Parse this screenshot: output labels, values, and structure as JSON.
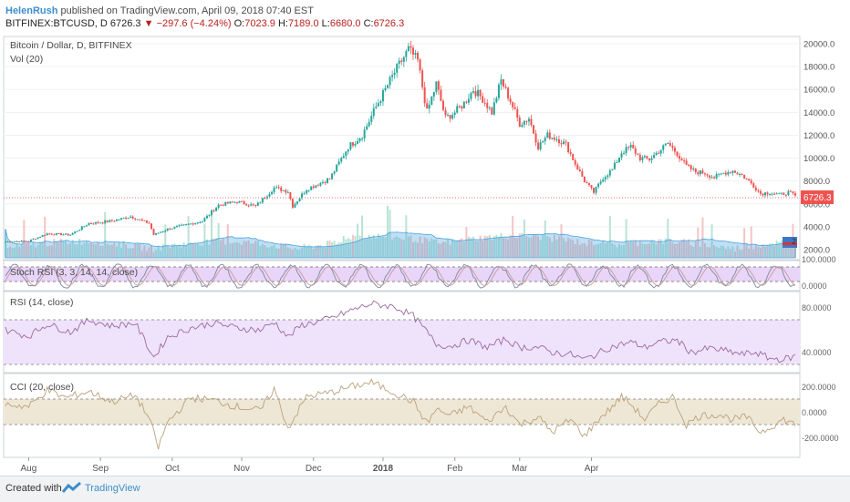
{
  "header": {
    "author": "HelenRush",
    "published": "published on TradingView.com, April 09, 2018 07:40 EST",
    "symbol": "BITFINEX:BTCUSD, D",
    "last": "6726.3",
    "change": "−297.6 (−4.24%)",
    "o_label": "O:",
    "o_value": "7023.9",
    "h_label": "H:",
    "h_value": "7189.0",
    "l_label": "L:",
    "l_value": "6680.0",
    "c_label": "C:",
    "c_value": "6726.3"
  },
  "footer": {
    "created": "Created with",
    "brand": "TradingView"
  },
  "colors": {
    "up": "#53b987",
    "down": "#eb4d5c",
    "candle_up": "#26a69a",
    "candle_down": "#ef5350",
    "vol_ma": "#4aa3df",
    "panel_bg": "#e6d5f5",
    "cci_band": "#efe7d6",
    "oscillator": "#9b6aa0",
    "price_line": "#e57373",
    "brand": "#3c8ecc"
  },
  "chart_data": [
    {
      "type": "candlestick",
      "title": "Bitcoin / Dollar, D, BITFINEX",
      "subtitle": "Vol (20)",
      "x_ticks": [
        "Aug",
        "Sep",
        "Oct",
        "Nov",
        "Dec",
        "2018",
        "Feb",
        "Mar",
        "Apr"
      ],
      "y_ticks": [
        "20000.0",
        "18000.0",
        "16000.0",
        "14000.0",
        "12000.0",
        "10000.0",
        "8000.0",
        "6000.0",
        "4000.0",
        "2000.0"
      ],
      "ylim": [
        2000,
        20000
      ],
      "last_price_label": "6726.3",
      "volume_axis_label": "2",
      "anchors": [
        [
          0,
          2700
        ],
        [
          10,
          2750
        ],
        [
          18,
          3400
        ],
        [
          28,
          3300
        ],
        [
          36,
          4300
        ],
        [
          46,
          4500
        ],
        [
          54,
          4900
        ],
        [
          62,
          4300
        ],
        [
          64,
          3300
        ],
        [
          70,
          3800
        ],
        [
          85,
          4500
        ],
        [
          92,
          5900
        ],
        [
          100,
          6200
        ],
        [
          108,
          5800
        ],
        [
          116,
          7400
        ],
        [
          122,
          7100
        ],
        [
          124,
          5800
        ],
        [
          130,
          7300
        ],
        [
          140,
          8200
        ],
        [
          148,
          11000
        ],
        [
          154,
          12000
        ],
        [
          160,
          14500
        ],
        [
          168,
          17500
        ],
        [
          174,
          19500
        ],
        [
          178,
          18500
        ],
        [
          182,
          14000
        ],
        [
          186,
          16500
        ],
        [
          190,
          13500
        ],
        [
          194,
          14000
        ],
        [
          198,
          14800
        ],
        [
          202,
          16000
        ],
        [
          206,
          15200
        ],
        [
          210,
          14000
        ],
        [
          214,
          16800
        ],
        [
          218,
          15000
        ],
        [
          222,
          13000
        ],
        [
          226,
          13500
        ],
        [
          230,
          11000
        ],
        [
          234,
          12000
        ],
        [
          238,
          11700
        ],
        [
          242,
          11200
        ],
        [
          246,
          9500
        ],
        [
          250,
          8000
        ],
        [
          254,
          7000
        ],
        [
          258,
          8300
        ],
        [
          262,
          9000
        ],
        [
          266,
          10500
        ],
        [
          270,
          11000
        ],
        [
          274,
          10000
        ],
        [
          278,
          9900
        ],
        [
          282,
          10600
        ],
        [
          286,
          11300
        ],
        [
          290,
          10400
        ],
        [
          294,
          9300
        ],
        [
          298,
          8800
        ],
        [
          302,
          8700
        ],
        [
          306,
          8300
        ],
        [
          310,
          8700
        ],
        [
          314,
          8900
        ],
        [
          318,
          8500
        ],
        [
          322,
          7800
        ],
        [
          326,
          6900
        ],
        [
          330,
          7000
        ],
        [
          334,
          6800
        ],
        [
          338,
          7000
        ],
        [
          341,
          6726
        ]
      ]
    },
    {
      "type": "line",
      "title": "Stoch RSI (3, 3, 14, 14, close)",
      "y_ticks": [
        "100.0000",
        "0.0000"
      ],
      "ylim": [
        0,
        100
      ],
      "band": [
        20,
        80
      ]
    },
    {
      "type": "line",
      "title": "RSI (14, close)",
      "y_ticks": [
        "80.0000",
        "40.0000"
      ],
      "ylim": [
        20,
        100
      ],
      "band": [
        30,
        70
      ],
      "anchors": [
        [
          0,
          62
        ],
        [
          10,
          56
        ],
        [
          18,
          68
        ],
        [
          28,
          60
        ],
        [
          36,
          72
        ],
        [
          46,
          66
        ],
        [
          56,
          69
        ],
        [
          64,
          35
        ],
        [
          70,
          55
        ],
        [
          80,
          64
        ],
        [
          90,
          69
        ],
        [
          100,
          64
        ],
        [
          110,
          62
        ],
        [
          116,
          70
        ],
        [
          122,
          55
        ],
        [
          128,
          67
        ],
        [
          140,
          73
        ],
        [
          150,
          82
        ],
        [
          158,
          88
        ],
        [
          168,
          85
        ],
        [
          176,
          76
        ],
        [
          182,
          60
        ],
        [
          186,
          48
        ],
        [
          192,
          46
        ],
        [
          200,
          52
        ],
        [
          208,
          45
        ],
        [
          216,
          53
        ],
        [
          222,
          45
        ],
        [
          230,
          45
        ],
        [
          236,
          40
        ],
        [
          244,
          38
        ],
        [
          250,
          33
        ],
        [
          254,
          37
        ],
        [
          260,
          44
        ],
        [
          266,
          48
        ],
        [
          270,
          50
        ],
        [
          276,
          45
        ],
        [
          282,
          50
        ],
        [
          290,
          52
        ],
        [
          296,
          40
        ],
        [
          304,
          44
        ],
        [
          312,
          41
        ],
        [
          318,
          38
        ],
        [
          324,
          40
        ],
        [
          330,
          34
        ],
        [
          336,
          33
        ],
        [
          341,
          36
        ]
      ]
    },
    {
      "type": "line",
      "title": "CCI (20, close)",
      "y_ticks": [
        "200.0000",
        "0.0000",
        "-200.0000"
      ],
      "ylim": [
        -300,
        300
      ],
      "band": [
        -100,
        100
      ],
      "anchors": [
        [
          0,
          60
        ],
        [
          10,
          40
        ],
        [
          18,
          170
        ],
        [
          26,
          110
        ],
        [
          36,
          160
        ],
        [
          46,
          80
        ],
        [
          56,
          130
        ],
        [
          62,
          -50
        ],
        [
          66,
          -280
        ],
        [
          70,
          -80
        ],
        [
          80,
          110
        ],
        [
          90,
          90
        ],
        [
          100,
          40
        ],
        [
          110,
          10
        ],
        [
          116,
          180
        ],
        [
          122,
          -130
        ],
        [
          130,
          120
        ],
        [
          140,
          150
        ],
        [
          150,
          200
        ],
        [
          158,
          230
        ],
        [
          168,
          150
        ],
        [
          176,
          80
        ],
        [
          182,
          -90
        ],
        [
          186,
          20
        ],
        [
          192,
          -30
        ],
        [
          200,
          40
        ],
        [
          208,
          -80
        ],
        [
          216,
          40
        ],
        [
          222,
          -100
        ],
        [
          230,
          -40
        ],
        [
          236,
          -160
        ],
        [
          244,
          -60
        ],
        [
          250,
          -190
        ],
        [
          256,
          -60
        ],
        [
          262,
          40
        ],
        [
          266,
          120
        ],
        [
          270,
          60
        ],
        [
          276,
          -60
        ],
        [
          282,
          60
        ],
        [
          288,
          120
        ],
        [
          294,
          -100
        ],
        [
          300,
          -30
        ],
        [
          308,
          -20
        ],
        [
          314,
          -60
        ],
        [
          320,
          -40
        ],
        [
          326,
          -160
        ],
        [
          330,
          -120
        ],
        [
          336,
          -60
        ],
        [
          341,
          -100
        ]
      ]
    }
  ]
}
